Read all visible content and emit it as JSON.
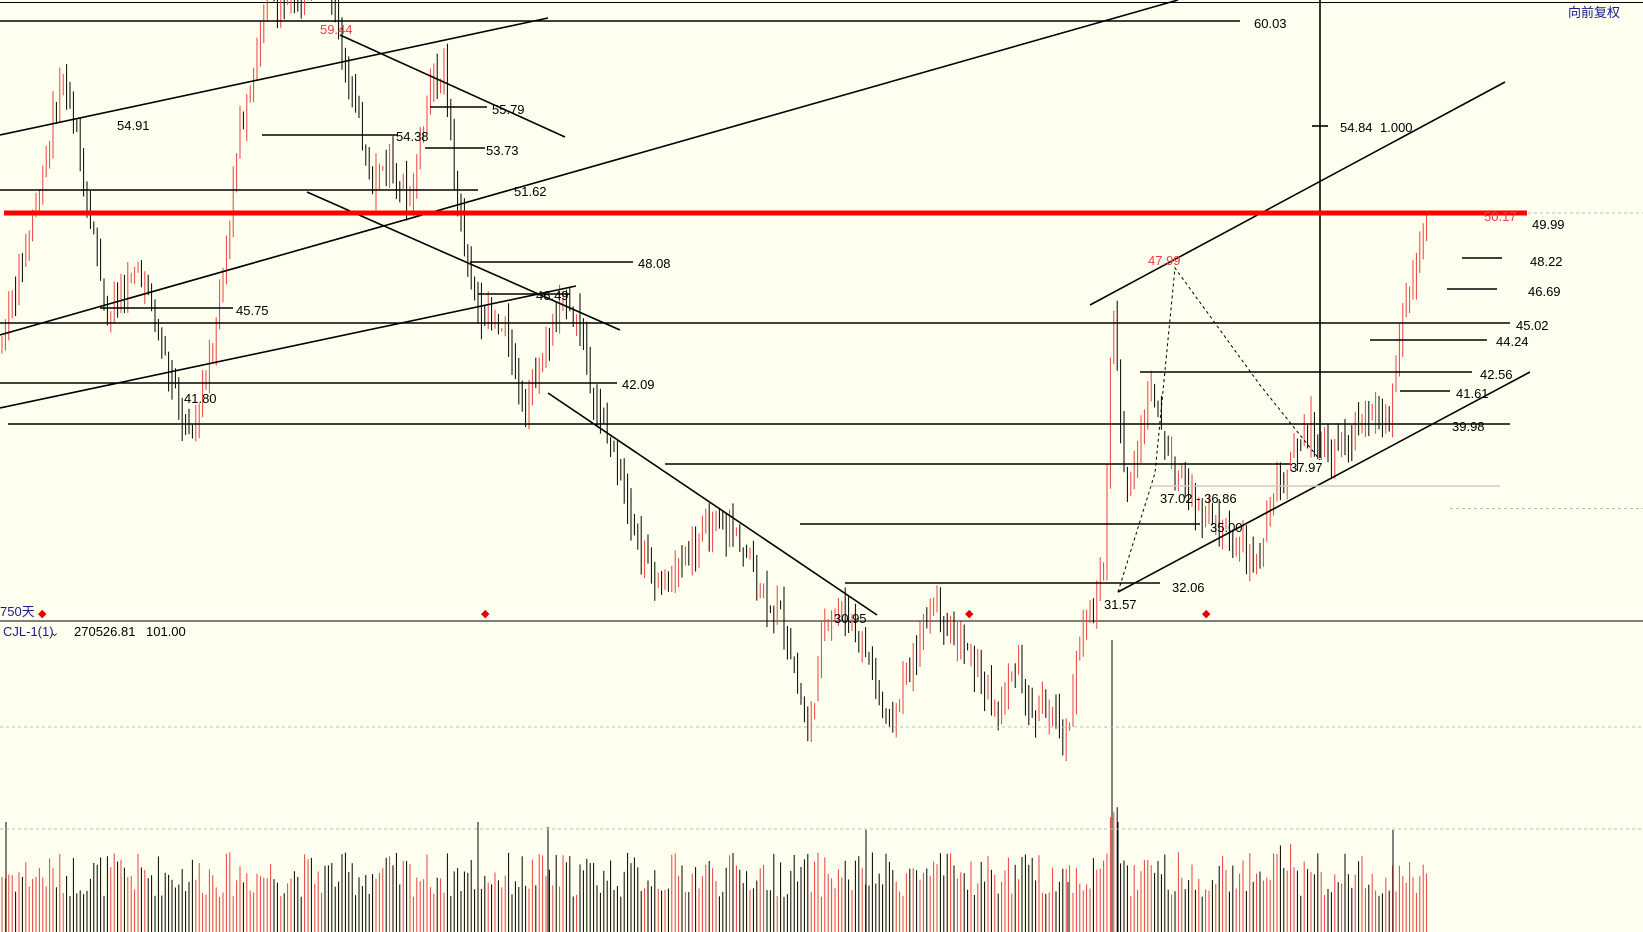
{
  "header": {
    "restore_label": "向前复权",
    "period_label": "750天",
    "indicator_name": "CJL-1(1)",
    "indicator_value": "270526.81",
    "indicator_second": "101.00"
  },
  "colors": {
    "background": "#fffff0",
    "up_candle": "#e84040",
    "down_candle": "#000000",
    "highlight_line": "#ff0000",
    "label_red": "#e84040",
    "header_text": "#1a1a8c",
    "marker": "#e00000"
  },
  "chart_data": [
    {
      "type": "candlestick",
      "title": "",
      "ylim": [
        29.5,
        61.0
      ],
      "grid": false,
      "price_levels": [
        {
          "label": "60.03",
          "value": 60.03
        },
        {
          "label": "55.79",
          "value": 55.79
        },
        {
          "label": "54.91",
          "value": 54.91
        },
        {
          "label": "54.38",
          "value": 54.38
        },
        {
          "label": "54.84",
          "value": 54.84
        },
        {
          "label": "1.000",
          "value": 54.84
        },
        {
          "label": "53.73",
          "value": 53.73
        },
        {
          "label": "51.62",
          "value": 51.62
        },
        {
          "label": "49.99",
          "value": 49.99
        },
        {
          "label": "48.22",
          "value": 48.22
        },
        {
          "label": "48.08",
          "value": 48.08
        },
        {
          "label": "46.69",
          "value": 46.69
        },
        {
          "label": "46.49",
          "value": 46.49
        },
        {
          "label": "45.75",
          "value": 45.75
        },
        {
          "label": "45.02",
          "value": 45.02
        },
        {
          "label": "44.24",
          "value": 44.24
        },
        {
          "label": "42.56",
          "value": 42.56
        },
        {
          "label": "42.09",
          "value": 42.09
        },
        {
          "label": "41.80",
          "value": 41.8
        },
        {
          "label": "41.61",
          "value": 41.61
        },
        {
          "label": "39.98",
          "value": 39.98
        },
        {
          "label": "37.97",
          "value": 37.97
        },
        {
          "label": "37.02 - 36.86",
          "value": 37.02
        },
        {
          "label": "35.00",
          "value": 35.0
        },
        {
          "label": "32.06",
          "value": 32.06
        },
        {
          "label": "31.57",
          "value": 31.57
        },
        {
          "label": "30.95",
          "value": 30.95
        }
      ],
      "extreme_marks": [
        {
          "label": "59.44",
          "value": 59.44
        },
        {
          "label": "47.99",
          "value": 47.99
        },
        {
          "label": "50.17",
          "value": 50.17
        }
      ],
      "highlight_level": 49.99,
      "right_axis_dashed_levels": [
        49.99,
        39.98
      ]
    },
    {
      "type": "bar",
      "title": "",
      "series": [
        {
          "name": "CJL-1(1)",
          "last_value": 270526.81
        }
      ]
    }
  ]
}
